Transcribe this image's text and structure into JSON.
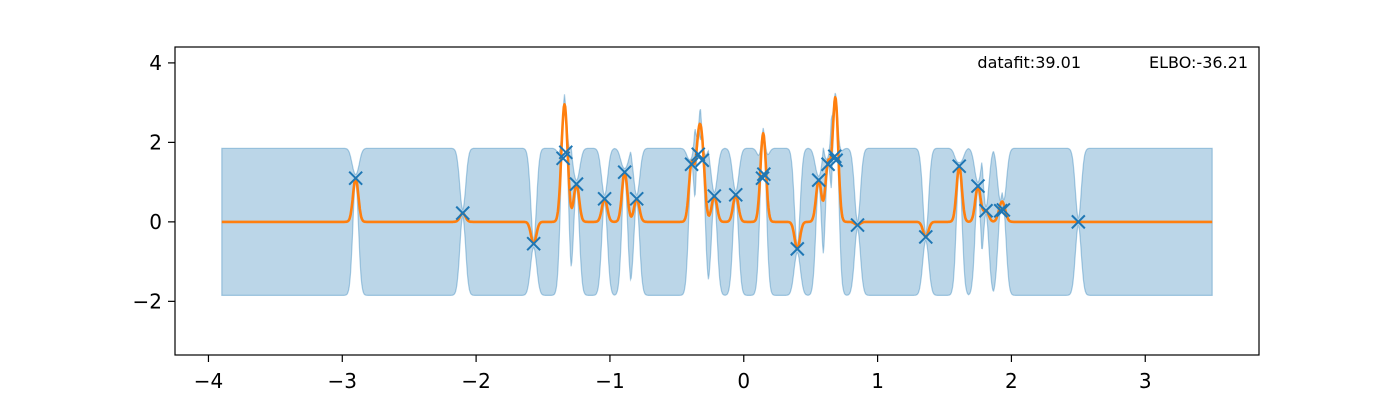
{
  "chart_data": {
    "type": "line",
    "xlim": [
      -4.25,
      3.85
    ],
    "ylim": [
      -3.35,
      4.4
    ],
    "x_ticks": [
      -4,
      -3,
      -2,
      -1,
      0,
      1,
      2,
      3
    ],
    "x_tick_labels": [
      "−4",
      "−3",
      "−2",
      "−1",
      "0",
      "1",
      "2",
      "3"
    ],
    "y_ticks": [
      -2,
      0,
      2,
      4
    ],
    "y_tick_labels": [
      "−2",
      "0",
      "2",
      "4"
    ],
    "grid": false,
    "annotations": {
      "datafit": "datafit:39.01",
      "elbo": "ELBO:-36.21"
    },
    "colors": {
      "band": "#1f77b4",
      "mean": "#ff7f0e",
      "points": "#1f77b4"
    },
    "x_range": [
      -3.9,
      3.5
    ],
    "band_half_width": 1.85,
    "points": [
      [
        -2.9,
        1.1
      ],
      [
        -2.1,
        0.22
      ],
      [
        -1.57,
        -0.55
      ],
      [
        -1.35,
        1.6
      ],
      [
        -1.33,
        1.75
      ],
      [
        -1.25,
        0.95
      ],
      [
        -1.04,
        0.58
      ],
      [
        -0.89,
        1.25
      ],
      [
        -0.8,
        0.58
      ],
      [
        -0.39,
        1.45
      ],
      [
        -0.34,
        1.7
      ],
      [
        -0.31,
        1.55
      ],
      [
        -0.22,
        0.65
      ],
      [
        -0.06,
        0.68
      ],
      [
        0.14,
        1.1
      ],
      [
        0.15,
        1.2
      ],
      [
        0.4,
        -0.68
      ],
      [
        0.56,
        1.05
      ],
      [
        0.63,
        1.45
      ],
      [
        0.68,
        1.65
      ],
      [
        0.69,
        1.55
      ],
      [
        0.85,
        -0.08
      ],
      [
        1.36,
        -0.38
      ],
      [
        1.61,
        1.4
      ],
      [
        1.75,
        0.9
      ],
      [
        1.81,
        0.28
      ],
      [
        1.92,
        0.28
      ],
      [
        1.94,
        0.3
      ],
      [
        2.5,
        0.0
      ]
    ]
  }
}
